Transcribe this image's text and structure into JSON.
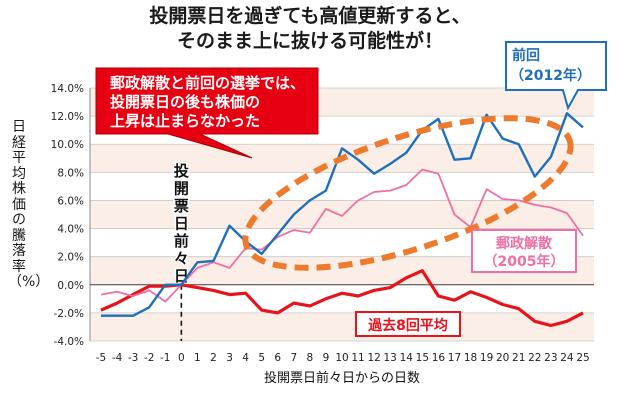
{
  "headline": {
    "line1": "投開票日を過ぎても高値更新すると、",
    "line2": "そのまま上に抜ける可能性が！"
  },
  "colors": {
    "blue": "#1f6fba",
    "pink": "#ef6fa6",
    "red": "#e8131a",
    "orange": "#ee7a2e",
    "band": "#fbeee7"
  },
  "chart_data": {
    "type": "line",
    "xlabel": "投開票日前々日からの日数",
    "ylabel": "日経平均株価の騰落率（%）",
    "ylim": [
      -4.0,
      14.0
    ],
    "yticks": [
      "-4.0%",
      "-2.0%",
      "0.0%",
      "2.0%",
      "4.0%",
      "6.0%",
      "8.0%",
      "10.0%",
      "12.0%",
      "14.0%"
    ],
    "x": [
      -5,
      -4,
      -3,
      -2,
      -1,
      0,
      1,
      2,
      3,
      4,
      5,
      6,
      7,
      8,
      9,
      10,
      11,
      12,
      13,
      14,
      15,
      16,
      17,
      18,
      19,
      20,
      21,
      22,
      23,
      24,
      25
    ],
    "grid": "horizontal",
    "series": [
      {
        "name": "前回（2012年）",
        "color": "#1f6fba",
        "values": [
          -2.2,
          -2.2,
          -2.2,
          -1.6,
          0.0,
          0.0,
          1.6,
          1.7,
          4.2,
          3.1,
          2.2,
          3.6,
          5.0,
          6.0,
          6.7,
          9.7,
          8.9,
          7.9,
          8.6,
          9.4,
          11.0,
          11.8,
          8.9,
          9.0,
          12.1,
          10.4,
          10.0,
          7.7,
          9.1,
          12.2,
          11.2
        ]
      },
      {
        "name": "郵政解散（2005年）",
        "color": "#ef6fa6",
        "values": [
          -0.7,
          -0.5,
          -0.8,
          -0.4,
          -1.2,
          0.0,
          1.2,
          1.6,
          1.2,
          2.6,
          2.5,
          3.4,
          3.9,
          3.7,
          5.4,
          4.9,
          6.0,
          6.6,
          6.7,
          7.1,
          8.2,
          7.9,
          5.0,
          4.1,
          6.8,
          6.1,
          6.0,
          5.7,
          5.5,
          5.1,
          3.5
        ]
      },
      {
        "name": "過去8回平均",
        "color": "#e8131a",
        "values": [
          -1.8,
          -1.3,
          -0.7,
          -0.1,
          -0.1,
          0.0,
          -0.2,
          -0.4,
          -0.7,
          -0.6,
          -1.8,
          -2.0,
          -1.3,
          -1.5,
          -1.0,
          -0.6,
          -0.8,
          -0.4,
          -0.2,
          0.5,
          1.0,
          -0.8,
          -1.1,
          -0.5,
          -0.9,
          -1.4,
          -1.7,
          -2.6,
          -2.9,
          -2.6,
          -2.0
        ]
      }
    ],
    "annotations": {
      "callout_text": [
        "郵政解散と前回の選挙では、",
        "投開票日の後も株価の",
        "上昇は止まらなかった"
      ],
      "vline_label": [
        "投",
        "開",
        "票",
        "日",
        "前",
        "々",
        "日"
      ],
      "label_2012": [
        "前回",
        "（2012年）"
      ],
      "label_2005": [
        "郵政解散",
        "（2005年）"
      ],
      "label_avg": "過去8回平均"
    }
  }
}
